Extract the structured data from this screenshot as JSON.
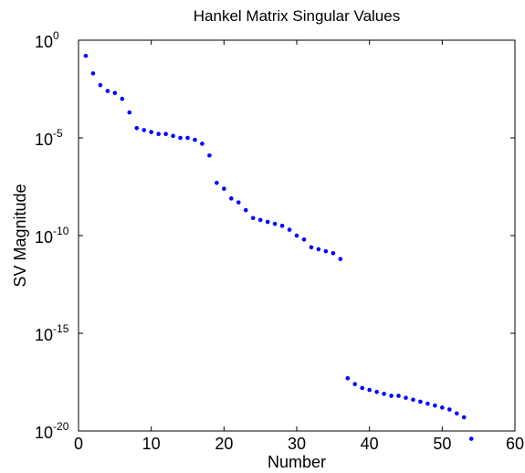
{
  "chart_data": {
    "type": "scatter",
    "title": "Hankel Matrix Singular Values",
    "xlabel": "Number",
    "ylabel": "SV Magnitude",
    "xlim": [
      0,
      60
    ],
    "ylim_log10": [
      -20,
      0
    ],
    "y_scale": "log",
    "grid": false,
    "x_ticks": [
      "0",
      "10",
      "20",
      "30",
      "40",
      "50",
      "60"
    ],
    "x_tick_values": [
      0,
      10,
      20,
      30,
      40,
      50,
      60
    ],
    "y_ticks": [
      {
        "base": "10",
        "exp": "0",
        "value": 0
      },
      {
        "base": "10",
        "exp": "-5",
        "value": -5
      },
      {
        "base": "10",
        "exp": "-10",
        "value": -10
      },
      {
        "base": "10",
        "exp": "-15",
        "value": -15
      },
      {
        "base": "10",
        "exp": "-20",
        "value": -20
      }
    ],
    "marker_color": "#0000ff",
    "x": [
      1,
      2,
      3,
      4,
      5,
      6,
      7,
      8,
      9,
      10,
      11,
      12,
      13,
      14,
      15,
      16,
      17,
      18,
      19,
      20,
      21,
      22,
      23,
      24,
      25,
      26,
      27,
      28,
      29,
      30,
      31,
      32,
      33,
      34,
      35,
      36,
      37,
      38,
      39,
      40,
      41,
      42,
      43,
      44,
      45,
      46,
      47,
      48,
      49,
      50,
      51,
      52,
      53,
      54
    ],
    "y_log10": [
      -0.8,
      -1.7,
      -2.3,
      -2.6,
      -2.7,
      -3.0,
      -3.7,
      -4.5,
      -4.6,
      -4.7,
      -4.8,
      -4.8,
      -4.9,
      -5.0,
      -5.0,
      -5.1,
      -5.3,
      -5.9,
      -7.3,
      -7.6,
      -8.1,
      -8.3,
      -8.7,
      -9.1,
      -9.2,
      -9.3,
      -9.4,
      -9.5,
      -9.7,
      -10.0,
      -10.2,
      -10.6,
      -10.7,
      -10.8,
      -10.9,
      -11.2,
      -17.3,
      -17.6,
      -17.8,
      -17.9,
      -18.0,
      -18.1,
      -18.2,
      -18.2,
      -18.3,
      -18.4,
      -18.5,
      -18.6,
      -18.7,
      -18.8,
      -18.9,
      -19.1,
      -19.3,
      -20.4
    ]
  }
}
